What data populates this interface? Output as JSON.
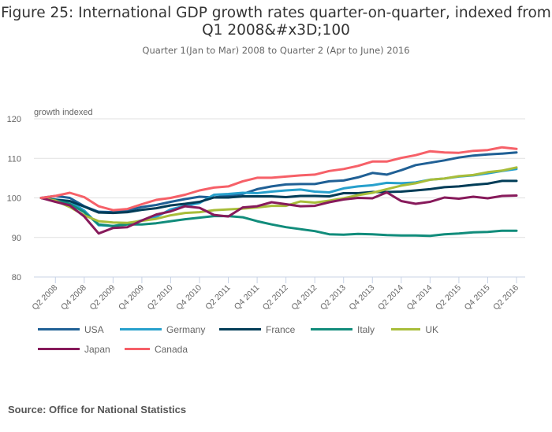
{
  "chart_data": {
    "type": "line",
    "title": "Figure 25: International GDP growth rates quarter-on-quarter, indexed from Q1 2008&#x3D;100",
    "subtitle": "Quarter 1(Jan to Mar) 2008 to Quarter 2 (Apr to June) 2016",
    "ylabel": "growth indexed",
    "xlabel": "",
    "ylim": [
      80,
      120
    ],
    "yticks": [
      80,
      90,
      100,
      110,
      120
    ],
    "grid": true,
    "legend_position": "bottom",
    "x": [
      "Q1 2008",
      "Q2 2008",
      "Q3 2008",
      "Q4 2008",
      "Q1 2009",
      "Q2 2009",
      "Q3 2009",
      "Q4 2009",
      "Q1 2010",
      "Q2 2010",
      "Q3 2010",
      "Q4 2010",
      "Q1 2011",
      "Q2 2011",
      "Q3 2011",
      "Q4 2011",
      "Q1 2012",
      "Q2 2012",
      "Q3 2012",
      "Q4 2012",
      "Q1 2013",
      "Q2 2013",
      "Q3 2013",
      "Q4 2013",
      "Q1 2014",
      "Q2 2014",
      "Q3 2014",
      "Q4 2014",
      "Q1 2015",
      "Q2 2015",
      "Q3 2015",
      "Q4 2015",
      "Q1 2016",
      "Q2 2016"
    ],
    "xtick_labels": [
      "Q2 2008",
      "Q4 2008",
      "Q2 2009",
      "Q4 2009",
      "Q2 2010",
      "Q4 2010",
      "Q2 2011",
      "Q4 2011",
      "Q2 2012",
      "Q4 2012",
      "Q2 2013",
      "Q4 2013",
      "Q2 2014",
      "Q4 2014",
      "Q2 2015",
      "Q4 2015",
      "Q2 2016"
    ],
    "series": [
      {
        "name": "USA",
        "color": "#206095",
        "values": [
          100.0,
          100.5,
          100.0,
          97.9,
          96.5,
          96.4,
          96.8,
          97.7,
          98.2,
          99.0,
          99.7,
          100.3,
          100.1,
          100.6,
          101.0,
          102.2,
          102.9,
          103.4,
          103.5,
          103.5,
          104.2,
          104.4,
          105.2,
          106.3,
          105.9,
          107.0,
          108.3,
          108.9,
          109.5,
          110.2,
          110.7,
          111.0,
          111.2,
          111.5
        ]
      },
      {
        "name": "Germany",
        "color": "#27a0cc",
        "values": [
          100.0,
          99.6,
          99.2,
          96.8,
          93.1,
          92.9,
          93.5,
          94.3,
          95.2,
          97.1,
          98.0,
          98.7,
          100.8,
          101.0,
          101.3,
          101.2,
          101.6,
          101.9,
          102.1,
          101.6,
          101.4,
          102.4,
          102.9,
          103.2,
          103.8,
          103.7,
          103.9,
          104.6,
          104.9,
          105.4,
          105.7,
          106.2,
          106.8,
          107.3
        ]
      },
      {
        "name": "France",
        "color": "#003c57",
        "values": [
          100.0,
          99.5,
          99.2,
          97.8,
          96.3,
          96.2,
          96.4,
          97.0,
          97.4,
          98.1,
          98.5,
          99.0,
          100.1,
          100.1,
          100.4,
          100.4,
          100.4,
          100.2,
          100.5,
          100.5,
          100.4,
          101.2,
          101.2,
          101.5,
          101.5,
          101.6,
          101.9,
          102.2,
          102.7,
          102.9,
          103.3,
          103.6,
          104.3,
          104.3
        ]
      },
      {
        "name": "Italy",
        "color": "#118c7b",
        "values": [
          100.0,
          99.4,
          98.5,
          96.4,
          93.3,
          92.9,
          93.3,
          93.3,
          93.6,
          94.1,
          94.6,
          95.0,
          95.4,
          95.4,
          95.1,
          94.1,
          93.3,
          92.6,
          92.1,
          91.6,
          90.8,
          90.7,
          90.9,
          90.8,
          90.6,
          90.5,
          90.5,
          90.4,
          90.8,
          91.0,
          91.3,
          91.4,
          91.7,
          91.7
        ]
      },
      {
        "name": "UK",
        "color": "#a8bd3a",
        "values": [
          100.0,
          99.3,
          97.7,
          95.6,
          94.1,
          93.8,
          93.7,
          94.2,
          94.7,
          95.6,
          96.2,
          96.4,
          96.9,
          97.1,
          97.3,
          97.6,
          98.0,
          98.0,
          99.1,
          98.8,
          99.3,
          99.9,
          100.7,
          101.3,
          102.2,
          103.1,
          103.7,
          104.6,
          104.9,
          105.5,
          105.8,
          106.5,
          106.9,
          107.7
        ]
      },
      {
        "name": "Japan",
        "color": "#871a5b",
        "values": [
          100.0,
          99.0,
          98.1,
          95.3,
          91.0,
          92.4,
          92.6,
          94.3,
          95.8,
          96.6,
          97.9,
          97.5,
          95.7,
          95.3,
          97.6,
          97.9,
          98.9,
          98.4,
          97.9,
          98.0,
          98.9,
          99.6,
          100.0,
          99.9,
          101.4,
          99.2,
          98.5,
          99.0,
          100.1,
          99.8,
          100.3,
          99.9,
          100.5,
          100.6
        ]
      },
      {
        "name": "Canada",
        "color": "#f66068",
        "values": [
          100.0,
          100.5,
          101.3,
          100.2,
          97.9,
          96.9,
          97.2,
          98.4,
          99.5,
          100.0,
          100.8,
          101.9,
          102.6,
          102.9,
          104.2,
          105.1,
          105.1,
          105.4,
          105.7,
          105.9,
          106.8,
          107.3,
          108.1,
          109.2,
          109.2,
          110.1,
          110.8,
          111.8,
          111.5,
          111.4,
          111.9,
          112.1,
          112.8,
          112.4
        ]
      }
    ]
  },
  "footer": {
    "source": "Source: Office for National Statistics"
  }
}
